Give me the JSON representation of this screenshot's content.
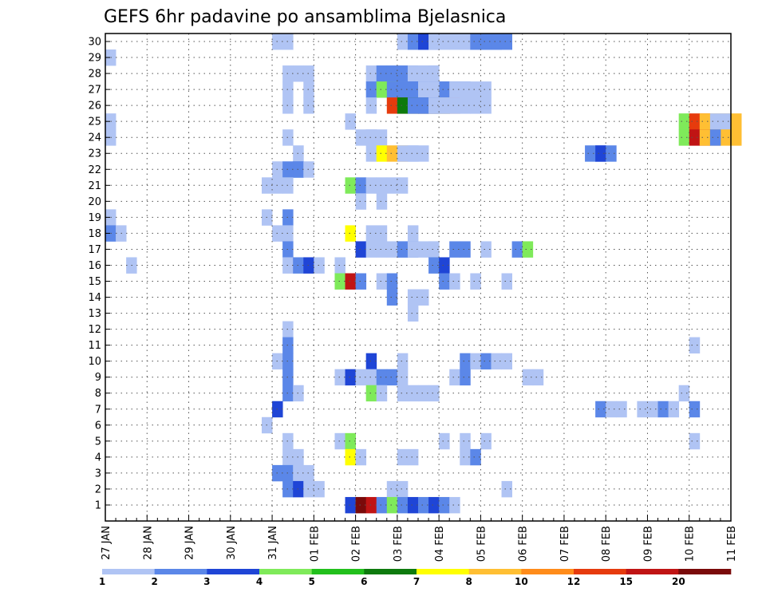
{
  "chart_data": {
    "type": "heatmap",
    "title": "GEFS 6hr padavine po ansamblima Bjelasnica",
    "y_labels": [
      "1",
      "2",
      "3",
      "4",
      "5",
      "6",
      "7",
      "8",
      "9",
      "10",
      "11",
      "12",
      "13",
      "14",
      "15",
      "16",
      "17",
      "18",
      "19",
      "20",
      "21",
      "22",
      "23",
      "24",
      "25",
      "26",
      "27",
      "28",
      "29",
      "30"
    ],
    "x_labels": [
      "27 JAN",
      "28 JAN",
      "29 JAN",
      "30 JAN",
      "31 JAN",
      "01 FEB",
      "02 FEB",
      "03 FEB",
      "04 FEB",
      "05 FEB",
      "06 FEB",
      "07 FEB",
      "08 FEB",
      "09 FEB",
      "10 FEB",
      "11 FEB"
    ],
    "x_range_steps": [
      0,
      60
    ],
    "y_range_members": [
      0,
      30
    ],
    "grid": true,
    "colorbar": {
      "labels": [
        "1",
        "2",
        "3",
        "4",
        "5",
        "6",
        "7",
        "8",
        "10",
        "12",
        "15",
        "20"
      ],
      "colors": [
        "#b0c4f4",
        "#5b87e8",
        "#1f45d6",
        "#7fea5a",
        "#22c01c",
        "#0d7a0d",
        "#ffff00",
        "#ffbf33",
        "#ff8c1a",
        "#e63b0d",
        "#c01414",
        "#7a0a0a"
      ]
    },
    "cells": [
      [
        1,
        30,
        16,
        0
      ],
      [
        1,
        30,
        17,
        0
      ],
      [
        2,
        30,
        28,
        0
      ],
      [
        3,
        30,
        29,
        1
      ],
      [
        2,
        30,
        30,
        2
      ],
      [
        2,
        30,
        31,
        0
      ],
      [
        2,
        30,
        33,
        0
      ],
      [
        2,
        30,
        34,
        0
      ],
      [
        2,
        30,
        35,
        1
      ],
      [
        2,
        30,
        36,
        1
      ],
      [
        2,
        30,
        37,
        1
      ],
      [
        1,
        29,
        0,
        0
      ],
      [
        1,
        28,
        17,
        0
      ],
      [
        1,
        28,
        18,
        0
      ],
      [
        1,
        28,
        19,
        0
      ],
      [
        5,
        28,
        25,
        0
      ],
      [
        6,
        28,
        26,
        1
      ],
      [
        2,
        28,
        29,
        0
      ],
      [
        2,
        28,
        30,
        0
      ],
      [
        1,
        27,
        17,
        0
      ],
      [
        1,
        27,
        19,
        0
      ],
      [
        4,
        27,
        25,
        1
      ],
      [
        6,
        27,
        26,
        3
      ],
      [
        5,
        27,
        27,
        1
      ],
      [
        6,
        27,
        28,
        1
      ],
      [
        6,
        27,
        29,
        1
      ],
      [
        2,
        27,
        30,
        0
      ],
      [
        2,
        27,
        33,
        0
      ],
      [
        2,
        27,
        35,
        0
      ],
      [
        1,
        26,
        17,
        0
      ],
      [
        1,
        26,
        19,
        0
      ],
      [
        1,
        26,
        25,
        0
      ],
      [
        7,
        26,
        27,
        9
      ],
      [
        5,
        26,
        28,
        5
      ],
      [
        3,
        26,
        29,
        1
      ],
      [
        2,
        26,
        30,
        1
      ],
      [
        2,
        26,
        31,
        0
      ],
      [
        2,
        26,
        32,
        0
      ],
      [
        2,
        26,
        33,
        0
      ],
      [
        2,
        26,
        34,
        0
      ],
      [
        2,
        26,
        35,
        0
      ],
      [
        1,
        25,
        0,
        0
      ],
      [
        1,
        25,
        23,
        0
      ],
      [
        1,
        25,
        55,
        3
      ],
      [
        2,
        25,
        56,
        9
      ],
      [
        4,
        25,
        57,
        7
      ],
      [
        2,
        25,
        58,
        0
      ],
      [
        1,
        24,
        0,
        0
      ],
      [
        1,
        24,
        17,
        0
      ],
      [
        2,
        24,
        24,
        0
      ],
      [
        2,
        24,
        25,
        0
      ],
      [
        1,
        24,
        55,
        3
      ],
      [
        2,
        24,
        56,
        10
      ],
      [
        4,
        24,
        57,
        7
      ],
      [
        1,
        24,
        58,
        1
      ],
      [
        1,
        23,
        18,
        0
      ],
      [
        1,
        23,
        25,
        0
      ],
      [
        1,
        23,
        26,
        6
      ],
      [
        2,
        23,
        27,
        7
      ],
      [
        2,
        23,
        28,
        0
      ],
      [
        2,
        23,
        29,
        0
      ],
      [
        2,
        23,
        46,
        1
      ],
      [
        1,
        23,
        47,
        2
      ],
      [
        1,
        23,
        48,
        1
      ],
      [
        1,
        22,
        16,
        0
      ],
      [
        2,
        22,
        17,
        1
      ],
      [
        1,
        22,
        18,
        1
      ],
      [
        1,
        22,
        19,
        0
      ],
      [
        3,
        21,
        15,
        0
      ],
      [
        1,
        21,
        23,
        3
      ],
      [
        1,
        21,
        24,
        1
      ],
      [
        4,
        21,
        25,
        0
      ],
      [
        1,
        20,
        24,
        0
      ],
      [
        1,
        20,
        26,
        0
      ],
      [
        1,
        19,
        0,
        0
      ],
      [
        1,
        19,
        15,
        0
      ],
      [
        1,
        19,
        17,
        1
      ],
      [
        1,
        18,
        0,
        1
      ],
      [
        1,
        18,
        1,
        0
      ],
      [
        2,
        18,
        16,
        0
      ],
      [
        1,
        18,
        23,
        6
      ],
      [
        2,
        18,
        25,
        0
      ],
      [
        1,
        18,
        29,
        0
      ],
      [
        1,
        17,
        17,
        1
      ],
      [
        1,
        17,
        24,
        2
      ],
      [
        2,
        17,
        25,
        0
      ],
      [
        2,
        17,
        27,
        0
      ],
      [
        2,
        17,
        28,
        1
      ],
      [
        3,
        17,
        29,
        0
      ],
      [
        1,
        17,
        31,
        0
      ],
      [
        2,
        17,
        33,
        1
      ],
      [
        1,
        17,
        36,
        0
      ],
      [
        1,
        17,
        39,
        1
      ],
      [
        1,
        17,
        40,
        3
      ],
      [
        1,
        16,
        2,
        0
      ],
      [
        1,
        16,
        17,
        0
      ],
      [
        1,
        16,
        18,
        1
      ],
      [
        1,
        16,
        19,
        2
      ],
      [
        1,
        16,
        20,
        0
      ],
      [
        1,
        16,
        22,
        0
      ],
      [
        1,
        16,
        31,
        1
      ],
      [
        1,
        16,
        32,
        2
      ],
      [
        1,
        15,
        22,
        3
      ],
      [
        1,
        15,
        23,
        10
      ],
      [
        1,
        15,
        24,
        1
      ],
      [
        1,
        15,
        26,
        0
      ],
      [
        1,
        15,
        27,
        1
      ],
      [
        1,
        15,
        32,
        1
      ],
      [
        1,
        15,
        33,
        0
      ],
      [
        1,
        15,
        35,
        0
      ],
      [
        1,
        15,
        38,
        0
      ],
      [
        1,
        14,
        27,
        1
      ],
      [
        2,
        14,
        29,
        0
      ],
      [
        1,
        13,
        29,
        0
      ],
      [
        1,
        12,
        17,
        0
      ],
      [
        1,
        11,
        17,
        1
      ],
      [
        1,
        11,
        56,
        0
      ],
      [
        1,
        10,
        16,
        0
      ],
      [
        1,
        10,
        17,
        1
      ],
      [
        1,
        10,
        25,
        2
      ],
      [
        1,
        10,
        28,
        0
      ],
      [
        1,
        10,
        34,
        1
      ],
      [
        1,
        10,
        35,
        0
      ],
      [
        1,
        10,
        36,
        1
      ],
      [
        2,
        10,
        37,
        0
      ],
      [
        1,
        9,
        17,
        1
      ],
      [
        1,
        9,
        22,
        0
      ],
      [
        1,
        9,
        23,
        2
      ],
      [
        1,
        9,
        24,
        0
      ],
      [
        1,
        9,
        25,
        0
      ],
      [
        1,
        9,
        26,
        1
      ],
      [
        1,
        9,
        27,
        1
      ],
      [
        1,
        9,
        28,
        0
      ],
      [
        1,
        9,
        33,
        0
      ],
      [
        1,
        9,
        34,
        1
      ],
      [
        2,
        9,
        40,
        0
      ],
      [
        1,
        8,
        17,
        1
      ],
      [
        1,
        8,
        18,
        0
      ],
      [
        1,
        8,
        25,
        3
      ],
      [
        1,
        8,
        26,
        0
      ],
      [
        4,
        8,
        28,
        0
      ],
      [
        1,
        8,
        55,
        0
      ],
      [
        1,
        7,
        16,
        2
      ],
      [
        1,
        7,
        47,
        1
      ],
      [
        2,
        7,
        48,
        0
      ],
      [
        2,
        7,
        51,
        0
      ],
      [
        1,
        7,
        53,
        1
      ],
      [
        1,
        7,
        54,
        0
      ],
      [
        1,
        7,
        56,
        1
      ],
      [
        1,
        6,
        15,
        0
      ],
      [
        1,
        5,
        17,
        0
      ],
      [
        1,
        5,
        22,
        0
      ],
      [
        1,
        5,
        23,
        3
      ],
      [
        1,
        5,
        32,
        0
      ],
      [
        1,
        5,
        34,
        0
      ],
      [
        1,
        5,
        36,
        0
      ],
      [
        1,
        5,
        56,
        0
      ],
      [
        2,
        4,
        17,
        0
      ],
      [
        1,
        4,
        23,
        6
      ],
      [
        1,
        4,
        24,
        0
      ],
      [
        2,
        4,
        28,
        0
      ],
      [
        1,
        4,
        34,
        0
      ],
      [
        1,
        4,
        35,
        1
      ],
      [
        2,
        3,
        16,
        1
      ],
      [
        1,
        3,
        18,
        0
      ],
      [
        1,
        3,
        19,
        0
      ],
      [
        1,
        2,
        17,
        1
      ],
      [
        1,
        2,
        18,
        2
      ],
      [
        2,
        2,
        19,
        0
      ],
      [
        2,
        2,
        27,
        0
      ],
      [
        1,
        2,
        38,
        0
      ],
      [
        1,
        1,
        23,
        2
      ],
      [
        1,
        1,
        24,
        11
      ],
      [
        1,
        1,
        25,
        10
      ],
      [
        1,
        1,
        26,
        1
      ],
      [
        1,
        1,
        27,
        3
      ],
      [
        1,
        1,
        28,
        1
      ],
      [
        1,
        1,
        29,
        2
      ],
      [
        1,
        1,
        30,
        1
      ],
      [
        1,
        1,
        31,
        2
      ],
      [
        1,
        1,
        32,
        1
      ],
      [
        1,
        1,
        33,
        0
      ]
    ]
  }
}
